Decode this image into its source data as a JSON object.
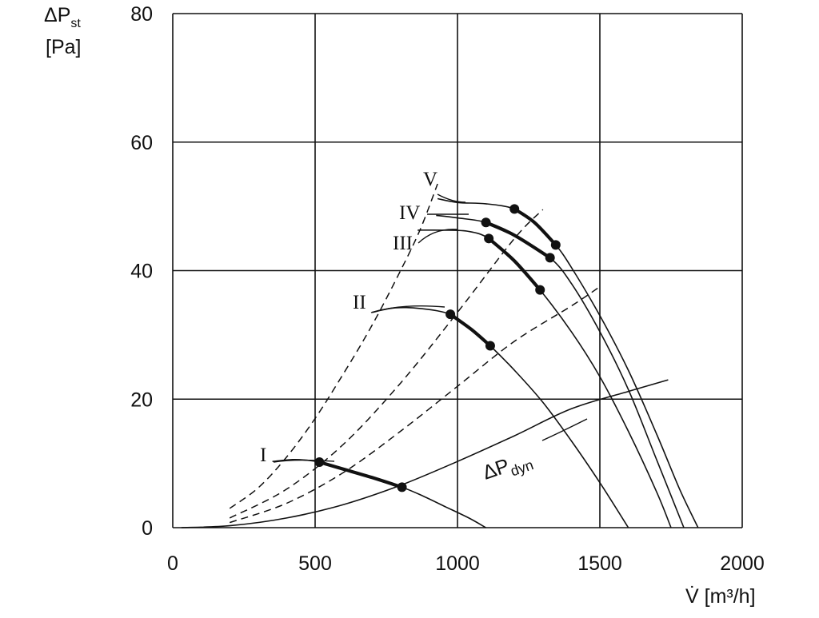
{
  "chart_data": {
    "type": "line",
    "x_axis": {
      "label": "V̇ [m³/h]",
      "range": [
        0,
        2000
      ],
      "ticks": [
        0,
        500,
        1000,
        1500,
        2000
      ],
      "tick_labels": [
        "0",
        "500",
        "1000",
        "1500",
        "2000"
      ]
    },
    "y_axis": {
      "label_main": "ΔP",
      "label_sub": "st",
      "label_unit": "[Pa]",
      "range": [
        0,
        80
      ],
      "ticks": [
        0,
        20,
        40,
        60,
        80
      ],
      "tick_labels": [
        "0",
        "20",
        "40",
        "60",
        "80"
      ]
    },
    "grid": true,
    "series": [
      {
        "name": "I",
        "style": "solid",
        "points": [
          [
            350,
            10.3
          ],
          [
            420,
            10.6
          ],
          [
            470,
            10.5
          ],
          [
            515,
            10.2
          ],
          [
            600,
            9.1
          ],
          [
            700,
            7.8
          ],
          [
            805,
            6.3
          ],
          [
            880,
            4.9
          ],
          [
            960,
            3.2
          ],
          [
            1040,
            1.5
          ],
          [
            1100,
            0
          ]
        ],
        "bold_segment": [
          [
            515,
            10.2
          ],
          [
            600,
            9.1
          ],
          [
            700,
            7.8
          ],
          [
            805,
            6.3
          ]
        ],
        "markers": [
          [
            515,
            10.2
          ],
          [
            805,
            6.3
          ]
        ]
      },
      {
        "name": "II",
        "style": "solid",
        "points": [
          [
            700,
            33.5
          ],
          [
            780,
            34.2
          ],
          [
            870,
            34.1
          ],
          [
            975,
            33.2
          ],
          [
            1050,
            30.8
          ],
          [
            1115,
            28.3
          ],
          [
            1200,
            24.5
          ],
          [
            1300,
            19.5
          ],
          [
            1400,
            13.5
          ],
          [
            1500,
            7.0
          ],
          [
            1600,
            0
          ]
        ],
        "bold_segment": [
          [
            975,
            33.2
          ],
          [
            1050,
            30.8
          ],
          [
            1115,
            28.3
          ]
        ],
        "markers": [
          [
            975,
            33.2
          ],
          [
            1115,
            28.3
          ]
        ]
      },
      {
        "name": "III",
        "style": "solid",
        "points": [
          [
            860,
            46.3
          ],
          [
            950,
            46.3
          ],
          [
            1040,
            46.1
          ],
          [
            1110,
            45.0
          ],
          [
            1200,
            41.5
          ],
          [
            1290,
            37.0
          ],
          [
            1400,
            30.5
          ],
          [
            1500,
            23.5
          ],
          [
            1600,
            15.0
          ],
          [
            1700,
            5.5
          ],
          [
            1750,
            0
          ]
        ],
        "bold_segment": [
          [
            1110,
            45.0
          ],
          [
            1200,
            41.5
          ],
          [
            1290,
            37.0
          ]
        ],
        "markers": [
          [
            1110,
            45.0
          ],
          [
            1290,
            37.0
          ]
        ]
      },
      {
        "name": "IV",
        "style": "solid",
        "points": [
          [
            925,
            48.6
          ],
          [
            1000,
            48.2
          ],
          [
            1100,
            47.5
          ],
          [
            1200,
            45.5
          ],
          [
            1325,
            42.0
          ],
          [
            1400,
            38.0
          ],
          [
            1500,
            30.5
          ],
          [
            1600,
            21.5
          ],
          [
            1700,
            10.5
          ],
          [
            1795,
            0
          ]
        ],
        "bold_segment": [
          [
            1100,
            47.5
          ],
          [
            1200,
            45.5
          ],
          [
            1325,
            42.0
          ]
        ],
        "markers": [
          [
            1100,
            47.5
          ],
          [
            1325,
            42.0
          ]
        ]
      },
      {
        "name": "V",
        "style": "solid",
        "points": [
          [
            930,
            51.2
          ],
          [
            1000,
            50.6
          ],
          [
            1100,
            50.4
          ],
          [
            1200,
            49.6
          ],
          [
            1270,
            47.5
          ],
          [
            1345,
            44.0
          ],
          [
            1400,
            40.5
          ],
          [
            1500,
            33.0
          ],
          [
            1600,
            24.5
          ],
          [
            1700,
            14.5
          ],
          [
            1780,
            6.0
          ],
          [
            1845,
            0
          ]
        ],
        "bold_segment": [
          [
            1200,
            49.6
          ],
          [
            1270,
            47.5
          ],
          [
            1345,
            44.0
          ]
        ],
        "markers": [
          [
            1200,
            49.6
          ],
          [
            1345,
            44.0
          ]
        ]
      },
      {
        "name": "ΔPdyn",
        "style": "solid",
        "points": [
          [
            30,
            0
          ],
          [
            200,
            0.3
          ],
          [
            400,
            1.5
          ],
          [
            600,
            3.6
          ],
          [
            800,
            6.6
          ],
          [
            1000,
            10.3
          ],
          [
            1200,
            14.3
          ],
          [
            1400,
            18.5
          ],
          [
            1600,
            21.2
          ],
          [
            1740,
            23.0
          ]
        ]
      },
      {
        "name": "",
        "style": "dashed",
        "points": [
          [
            200,
            3.0
          ],
          [
            300,
            6.2
          ],
          [
            400,
            11.0
          ],
          [
            500,
            17.0
          ],
          [
            600,
            24.0
          ],
          [
            700,
            31.5
          ],
          [
            800,
            40.0
          ],
          [
            870,
            46.5
          ],
          [
            930,
            53.5
          ]
        ]
      },
      {
        "name": "",
        "style": "dashed",
        "points": [
          [
            200,
            1.5
          ],
          [
            400,
            6.0
          ],
          [
            600,
            13.0
          ],
          [
            800,
            22.5
          ],
          [
            1000,
            33.5
          ],
          [
            1200,
            45.0
          ],
          [
            1300,
            49.5
          ]
        ]
      },
      {
        "name": "",
        "style": "dashed",
        "points": [
          [
            200,
            0.8
          ],
          [
            400,
            3.8
          ],
          [
            600,
            8.6
          ],
          [
            800,
            15.0
          ],
          [
            1000,
            22.0
          ],
          [
            1200,
            29.0
          ],
          [
            1400,
            34.5
          ],
          [
            1500,
            37.5
          ]
        ]
      }
    ],
    "annotations": [
      {
        "text": "I"
      },
      {
        "text": "II"
      },
      {
        "text": "III"
      },
      {
        "text": "IV"
      },
      {
        "text": "V"
      },
      {
        "text_main": "ΔP",
        "text_sub": "dyn"
      }
    ]
  }
}
